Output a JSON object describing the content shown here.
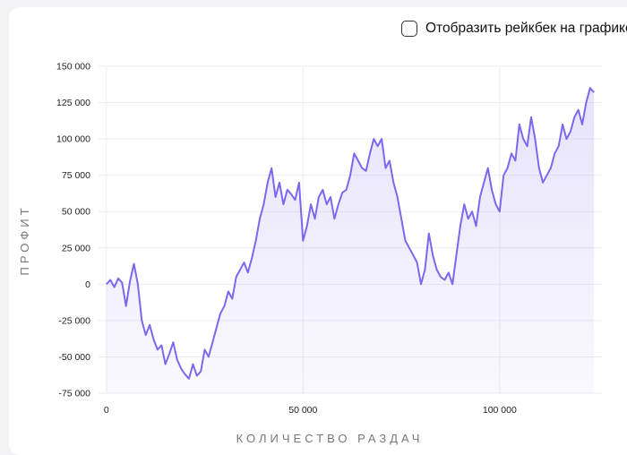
{
  "controls": {
    "rakeback_checkbox_label": "Отобразить рейкбек на графике",
    "rakeback_checked": false
  },
  "chart_data": {
    "type": "area",
    "title": "",
    "xlabel": "КОЛИЧЕСТВО РАЗДАЧ",
    "ylabel": "ПРОФИТ",
    "xlim": [
      -2000,
      126000
    ],
    "ylim": [
      -75000,
      150000
    ],
    "x_ticks": [
      0,
      50000,
      100000
    ],
    "x_tick_labels": [
      "0",
      "50 000",
      "100 000"
    ],
    "y_ticks": [
      150000,
      125000,
      100000,
      75000,
      50000,
      25000,
      0,
      -25000,
      -50000,
      -75000
    ],
    "y_tick_labels": [
      "150 000",
      "125 000",
      "100 000",
      "75 000",
      "50 000",
      "25 000",
      "0",
      "-25 000",
      "-50 000",
      "-75 000"
    ],
    "grid": true,
    "colors": {
      "line": "#7b68ee",
      "fill": "#b9aef3"
    },
    "series": [
      {
        "x": [
          0,
          1000,
          2000,
          3000,
          4000,
          5000,
          6000,
          7000,
          8000,
          9000,
          10000,
          11000,
          12000,
          13000,
          14000,
          15000,
          16000,
          17000,
          18000,
          19000,
          20000,
          21000,
          22000,
          23000,
          24000,
          25000,
          26000,
          27000,
          28000,
          29000,
          30000,
          31000,
          32000,
          33000,
          34000,
          35000,
          36000,
          37000,
          38000,
          39000,
          40000,
          41000,
          42000,
          43000,
          44000,
          45000,
          46000,
          47000,
          48000,
          49000,
          50000,
          51000,
          52000,
          53000,
          54000,
          55000,
          56000,
          57000,
          58000,
          59000,
          60000,
          61000,
          62000,
          63000,
          64000,
          65000,
          66000,
          67000,
          68000,
          69000,
          70000,
          71000,
          72000,
          73000,
          74000,
          75000,
          76000,
          77000,
          78000,
          79000,
          80000,
          81000,
          82000,
          83000,
          84000,
          85000,
          86000,
          87000,
          88000,
          89000,
          90000,
          91000,
          92000,
          93000,
          94000,
          95000,
          96000,
          97000,
          98000,
          99000,
          100000,
          101000,
          102000,
          103000,
          104000,
          105000,
          106000,
          107000,
          108000,
          109000,
          110000,
          111000,
          112000,
          113000,
          114000,
          115000,
          116000,
          117000,
          118000,
          119000,
          120000,
          121000,
          122000,
          123000,
          124000
        ],
        "y": [
          0,
          3000,
          -2000,
          4000,
          1000,
          -15000,
          2000,
          14000,
          0,
          -25000,
          -35000,
          -28000,
          -38000,
          -45000,
          -42000,
          -55000,
          -48000,
          -40000,
          -52000,
          -58000,
          -62000,
          -65000,
          -55000,
          -63000,
          -60000,
          -45000,
          -50000,
          -40000,
          -30000,
          -20000,
          -15000,
          -5000,
          -10000,
          5000,
          10000,
          15000,
          8000,
          18000,
          30000,
          45000,
          55000,
          70000,
          80000,
          60000,
          70000,
          55000,
          65000,
          62000,
          58000,
          70000,
          30000,
          40000,
          55000,
          45000,
          60000,
          65000,
          55000,
          60000,
          45000,
          55000,
          63000,
          65000,
          75000,
          90000,
          85000,
          80000,
          78000,
          90000,
          100000,
          95000,
          100000,
          80000,
          85000,
          70000,
          60000,
          45000,
          30000,
          25000,
          20000,
          15000,
          0,
          10000,
          35000,
          20000,
          10000,
          5000,
          3000,
          8000,
          0,
          20000,
          40000,
          55000,
          45000,
          50000,
          40000,
          60000,
          70000,
          80000,
          65000,
          55000,
          50000,
          75000,
          80000,
          90000,
          85000,
          110000,
          100000,
          95000,
          115000,
          100000,
          80000,
          70000,
          75000,
          80000,
          90000,
          95000,
          110000,
          100000,
          105000,
          115000,
          120000,
          110000,
          125000,
          135000,
          132000
        ]
      }
    ]
  }
}
